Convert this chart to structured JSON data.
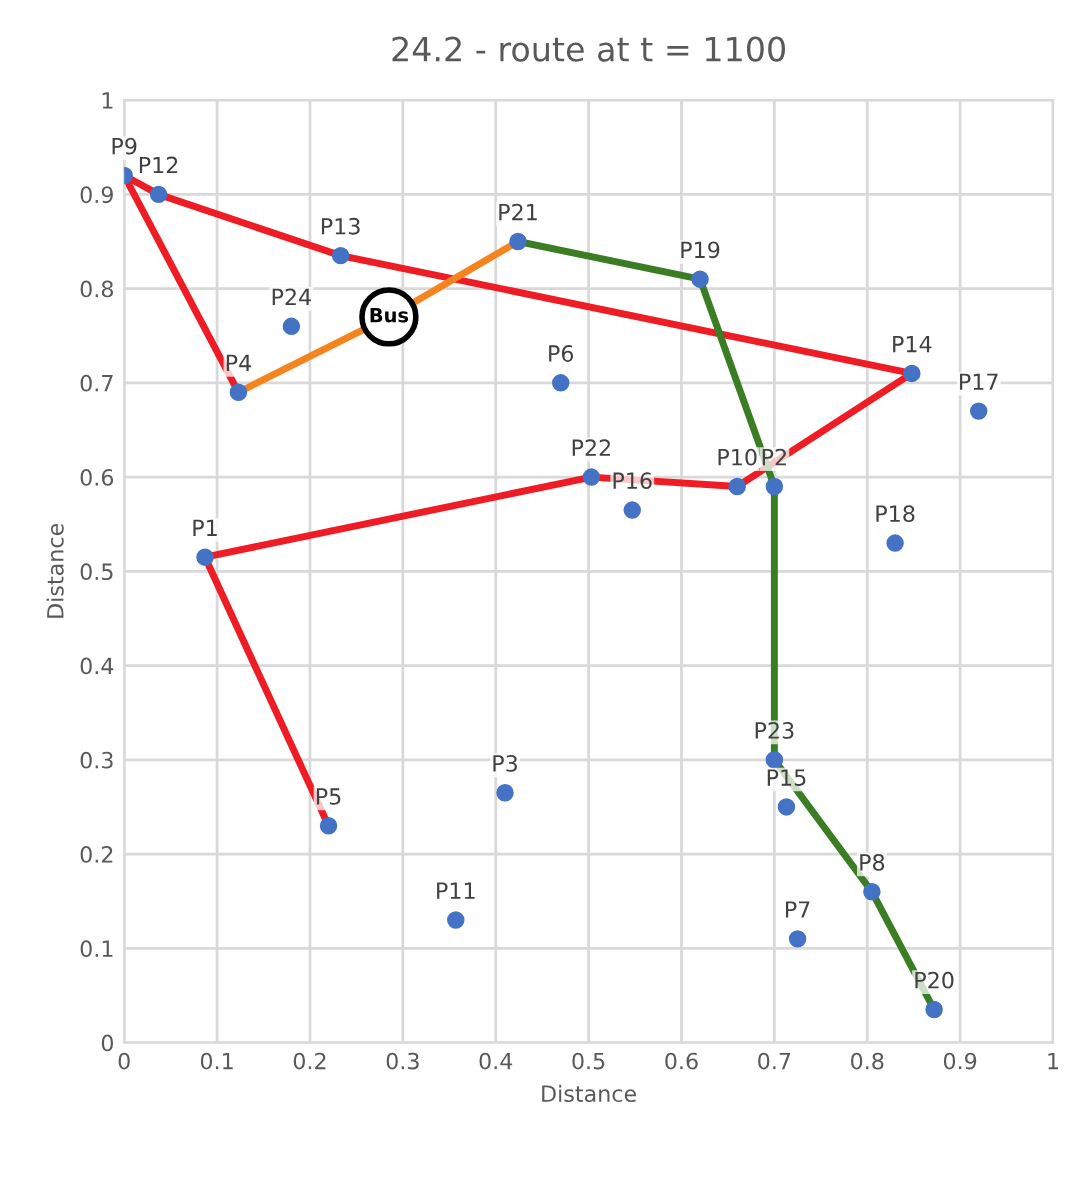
{
  "chart_data": {
    "type": "scatter",
    "title": "24.2 - route at t = 1100",
    "xlabel": "Distance",
    "ylabel": "Distance",
    "xlim": [
      0,
      1
    ],
    "ylim": [
      0,
      1
    ],
    "xticks": [
      0,
      0.1,
      0.2,
      0.3,
      0.4,
      0.5,
      0.6,
      0.7,
      0.8,
      0.9,
      1
    ],
    "yticks": [
      0,
      0.1,
      0.2,
      0.3,
      0.4,
      0.5,
      0.6,
      0.7,
      0.8,
      0.9,
      1
    ],
    "grid": true,
    "series": [
      {
        "type": "line",
        "color": "#ee1c25",
        "line_style": "solid",
        "marker": "none",
        "x": [
          0.22,
          0.087,
          0.503,
          0.66,
          0.848,
          0.233,
          0.037,
          0.0,
          0.123
        ],
        "values": [
          0.23,
          0.515,
          0.6,
          0.59,
          0.71,
          0.835,
          0.9,
          0.92,
          0.69
        ]
      },
      {
        "type": "line",
        "color": "#f5841f",
        "line_style": "solid",
        "marker": "none",
        "x": [
          0.123,
          0.285,
          0.424
        ],
        "values": [
          0.69,
          0.77,
          0.85
        ]
      },
      {
        "type": "line",
        "color": "#3a7d22",
        "line_style": "solid",
        "marker": "none",
        "x": [
          0.424,
          0.62,
          0.7,
          0.7,
          0.805,
          0.872
        ],
        "values": [
          0.85,
          0.81,
          0.59,
          0.3,
          0.16,
          0.035
        ]
      },
      {
        "color": "#4472c4",
        "marker": "circle",
        "x": [
          0.087,
          0.7,
          0.41,
          0.123,
          0.22,
          0.47,
          0.725,
          0.805,
          0.0,
          0.66,
          0.357,
          0.037,
          0.233,
          0.848,
          0.713,
          0.547,
          0.92,
          0.83,
          0.62,
          0.872,
          0.424,
          0.503,
          0.7,
          0.18
        ],
        "values": [
          0.515,
          0.59,
          0.265,
          0.69,
          0.23,
          0.7,
          0.11,
          0.16,
          0.92,
          0.59,
          0.13,
          0.9,
          0.835,
          0.71,
          0.25,
          0.565,
          0.67,
          0.53,
          0.81,
          0.035,
          0.85,
          0.6,
          0.3,
          0.76
        ]
      }
    ],
    "annotations": [
      {
        "text": "P1",
        "x": 0.087,
        "y": 0.515
      },
      {
        "text": "P2",
        "x": 0.7,
        "y": 0.59
      },
      {
        "text": "P3",
        "x": 0.41,
        "y": 0.265
      },
      {
        "text": "P4",
        "x": 0.123,
        "y": 0.69
      },
      {
        "text": "P5",
        "x": 0.22,
        "y": 0.23
      },
      {
        "text": "P6",
        "x": 0.47,
        "y": 0.7
      },
      {
        "text": "P7",
        "x": 0.725,
        "y": 0.11
      },
      {
        "text": "P8",
        "x": 0.805,
        "y": 0.16
      },
      {
        "text": "P9",
        "x": 0.0,
        "y": 0.92
      },
      {
        "text": "P10",
        "x": 0.66,
        "y": 0.59
      },
      {
        "text": "P11",
        "x": 0.357,
        "y": 0.13
      },
      {
        "text": "P12",
        "x": 0.037,
        "y": 0.9
      },
      {
        "text": "P13",
        "x": 0.233,
        "y": 0.835
      },
      {
        "text": "P14",
        "x": 0.848,
        "y": 0.71
      },
      {
        "text": "P15",
        "x": 0.713,
        "y": 0.25
      },
      {
        "text": "P16",
        "x": 0.547,
        "y": 0.565
      },
      {
        "text": "P17",
        "x": 0.92,
        "y": 0.67
      },
      {
        "text": "P18",
        "x": 0.83,
        "y": 0.53
      },
      {
        "text": "P19",
        "x": 0.62,
        "y": 0.81
      },
      {
        "text": "P20",
        "x": 0.872,
        "y": 0.035
      },
      {
        "text": "P21",
        "x": 0.424,
        "y": 0.85
      },
      {
        "text": "P22",
        "x": 0.503,
        "y": 0.6
      },
      {
        "text": "P23",
        "x": 0.7,
        "y": 0.3
      },
      {
        "text": "P24",
        "x": 0.18,
        "y": 0.76
      },
      {
        "text": "Bus",
        "x": 0.285,
        "y": 0.77
      }
    ]
  }
}
